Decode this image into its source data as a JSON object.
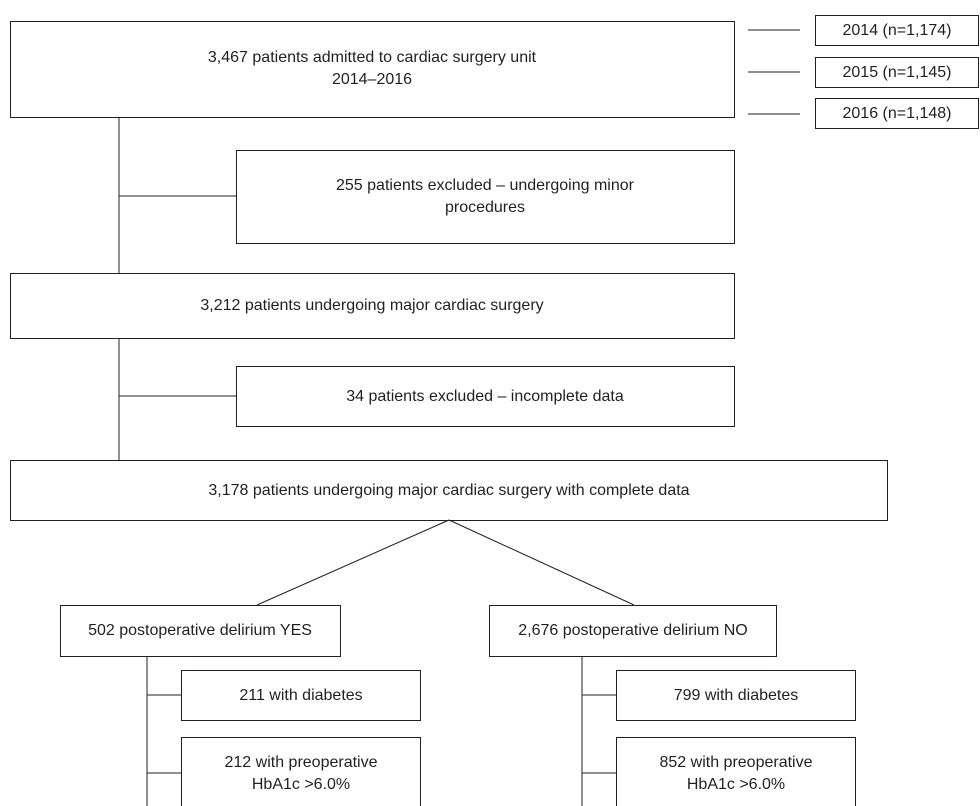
{
  "nodes": [
    {
      "lines": [
        "3,467 patients admitted to cardiac surgery unit",
        "2014–2016"
      ]
    },
    {
      "lines": [
        "2014 (n=1,174)"
      ]
    },
    {
      "lines": [
        "2015 (n=1,145)"
      ]
    },
    {
      "lines": [
        "2016 (n=1,148)"
      ]
    },
    {
      "lines": [
        "255 patients excluded – undergoing minor",
        "procedures"
      ]
    },
    {
      "lines": [
        "3,212 patients undergoing major cardiac surgery"
      ]
    },
    {
      "lines": [
        "34 patients excluded – incomplete data"
      ]
    },
    {
      "lines": [
        "3,178 patients undergoing major cardiac surgery with complete data"
      ]
    },
    {
      "lines": [
        "502 postoperative delirium YES"
      ]
    },
    {
      "lines": [
        "2,676 postoperative delirium NO"
      ]
    },
    {
      "lines": [
        "211 with diabetes"
      ]
    },
    {
      "lines": [
        "212 with preoperative",
        "HbA1c >6.0%"
      ]
    },
    {
      "lines": [
        "799 with diabetes"
      ]
    },
    {
      "lines": [
        "852 with preoperative",
        "HbA1c >6.0%"
      ]
    }
  ]
}
